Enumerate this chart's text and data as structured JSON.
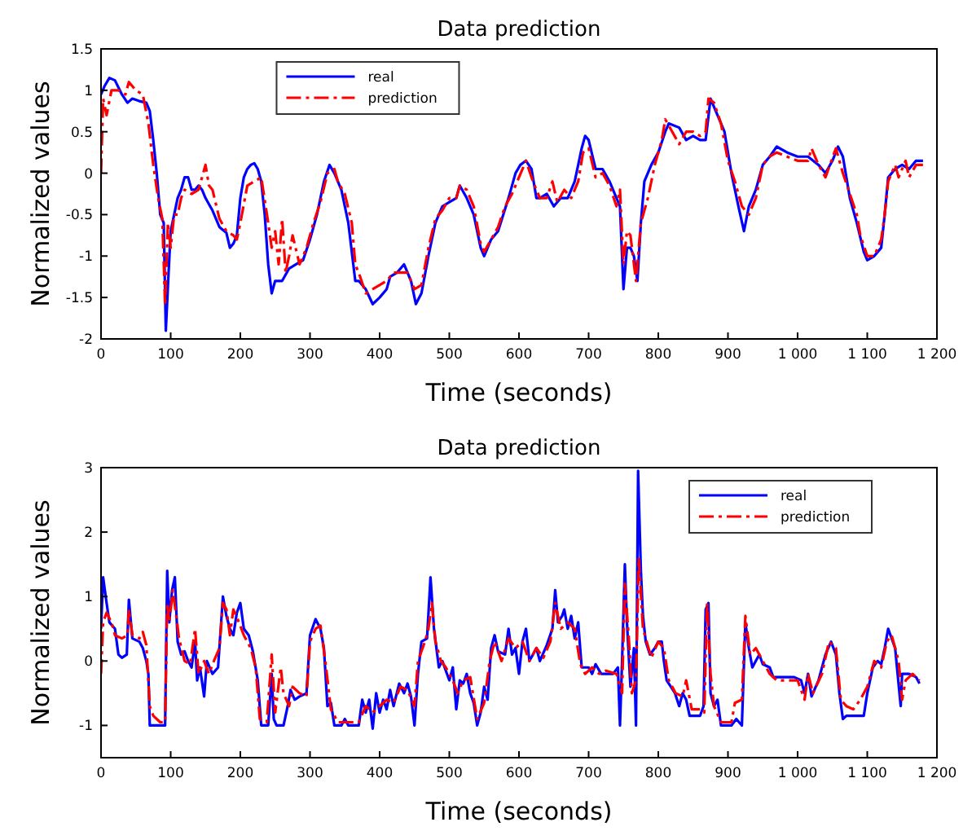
{
  "chart_data": [
    {
      "type": "line",
      "title": "Data prediction",
      "xlabel": "Time (seconds)",
      "ylabel": "Normalized values",
      "xlim": [
        0,
        1200
      ],
      "ylim": [
        -2,
        1.5
      ],
      "xticks": [
        0,
        100,
        200,
        300,
        400,
        500,
        600,
        700,
        800,
        900,
        {
          "value": 1000,
          "label": "1 000"
        },
        {
          "value": 1100,
          "label": "1 100"
        },
        {
          "value": 1200,
          "label": "1 200"
        }
      ],
      "yticks": [
        -2,
        -1.5,
        -1,
        -0.5,
        0,
        0.5,
        1,
        1.5
      ],
      "grid": false,
      "legend": "top",
      "series": [
        {
          "name": "real",
          "color": "#0000ff",
          "line_style": "solid",
          "x": [
            0,
            5,
            12,
            20,
            30,
            38,
            45,
            55,
            65,
            70,
            75,
            80,
            85,
            90,
            93,
            97,
            100,
            105,
            110,
            115,
            120,
            125,
            130,
            135,
            140,
            145,
            150,
            160,
            170,
            180,
            185,
            190,
            195,
            200,
            205,
            210,
            215,
            220,
            225,
            230,
            235,
            240,
            245,
            250,
            260,
            270,
            280,
            290,
            300,
            310,
            320,
            328,
            335,
            345,
            355,
            365,
            370,
            380,
            390,
            400,
            410,
            415,
            425,
            435,
            445,
            452,
            460,
            470,
            480,
            490,
            500,
            510,
            515,
            525,
            535,
            545,
            550,
            560,
            570,
            585,
            595,
            602,
            610,
            618,
            625,
            630,
            640,
            650,
            660,
            670,
            680,
            690,
            695,
            700,
            710,
            720,
            730,
            740,
            745,
            750,
            755,
            760,
            765,
            770,
            775,
            780,
            790,
            800,
            810,
            815,
            830,
            840,
            850,
            860,
            868,
            875,
            885,
            895,
            905,
            915,
            923,
            930,
            940,
            950,
            960,
            970,
            985,
            1000,
            1015,
            1030,
            1040,
            1050,
            1058,
            1065,
            1075,
            1085,
            1095,
            1100,
            1110,
            1120,
            1125,
            1130,
            1140,
            1150,
            1160,
            1170,
            1180
          ],
          "values": [
            0.95,
            1.05,
            1.15,
            1.12,
            0.95,
            0.85,
            0.9,
            0.87,
            0.85,
            0.75,
            0.4,
            0,
            -0.5,
            -0.6,
            -1.9,
            -1.2,
            -0.7,
            -0.5,
            -0.3,
            -0.2,
            -0.05,
            -0.05,
            -0.2,
            -0.2,
            -0.15,
            -0.2,
            -0.3,
            -0.45,
            -0.65,
            -0.72,
            -0.9,
            -0.85,
            -0.75,
            -0.3,
            -0.05,
            0.05,
            0.1,
            0.12,
            0.05,
            -0.1,
            -0.5,
            -1.1,
            -1.45,
            -1.3,
            -1.3,
            -1.15,
            -1.1,
            -1.05,
            -0.8,
            -0.5,
            -0.1,
            0.1,
            0,
            -0.2,
            -0.6,
            -1.3,
            -1.3,
            -1.4,
            -1.58,
            -1.5,
            -1.4,
            -1.25,
            -1.2,
            -1.1,
            -1.3,
            -1.58,
            -1.45,
            -1,
            -0.6,
            -0.4,
            -0.35,
            -0.3,
            -0.15,
            -0.3,
            -0.5,
            -0.9,
            -1,
            -0.8,
            -0.7,
            -0.3,
            0,
            0.1,
            0.15,
            0.05,
            -0.3,
            -0.3,
            -0.25,
            -0.4,
            -0.3,
            -0.3,
            -0.1,
            0.3,
            0.45,
            0.4,
            0.05,
            0.05,
            -0.1,
            -0.3,
            -0.4,
            -1.4,
            -0.9,
            -0.9,
            -1,
            -1.3,
            -0.6,
            -0.1,
            0.1,
            0.25,
            0.5,
            0.6,
            0.55,
            0.4,
            0.45,
            0.4,
            0.4,
            0.9,
            0.7,
            0.5,
            0,
            -0.4,
            -0.7,
            -0.4,
            -0.2,
            0.1,
            0.2,
            0.32,
            0.25,
            0.2,
            0.2,
            0.1,
            0,
            0.15,
            0.32,
            0.2,
            -0.3,
            -0.6,
            -0.95,
            -1.05,
            -1,
            -0.9,
            -0.5,
            -0.05,
            0.05,
            0.1,
            0.05,
            0.15,
            0.15
          ]
        },
        {
          "name": "prediction",
          "color": "#ff0000",
          "line_style": "dashed",
          "x": [
            0,
            3,
            8,
            15,
            25,
            35,
            40,
            50,
            60,
            68,
            75,
            82,
            88,
            92,
            96,
            100,
            105,
            110,
            115,
            120,
            130,
            140,
            150,
            155,
            160,
            170,
            180,
            190,
            195,
            200,
            210,
            220,
            230,
            240,
            245,
            250,
            255,
            260,
            265,
            270,
            275,
            285,
            295,
            305,
            315,
            325,
            335,
            340,
            350,
            360,
            365,
            372,
            380,
            390,
            400,
            410,
            420,
            430,
            440,
            450,
            460,
            470,
            480,
            490,
            500,
            510,
            515,
            525,
            535,
            545,
            550,
            560,
            570,
            580,
            590,
            600,
            610,
            620,
            630,
            640,
            648,
            655,
            665,
            675,
            685,
            692,
            700,
            710,
            720,
            730,
            740,
            745,
            750,
            755,
            760,
            768,
            775,
            785,
            795,
            805,
            810,
            820,
            830,
            840,
            850,
            860,
            868,
            872,
            880,
            890,
            900,
            910,
            920,
            930,
            940,
            950,
            960,
            970,
            985,
            1000,
            1015,
            1020,
            1030,
            1040,
            1055,
            1065,
            1075,
            1085,
            1090,
            1100,
            1110,
            1120,
            1125,
            1130,
            1140,
            1145,
            1155,
            1160,
            1170,
            1180
          ],
          "values": [
            0,
            0.9,
            0.7,
            1,
            1,
            0.95,
            1.1,
            1,
            0.95,
            0.6,
            0.1,
            -0.3,
            -0.55,
            -1.6,
            -0.6,
            -0.9,
            -0.5,
            -0.5,
            -0.3,
            -0.2,
            -0.25,
            -0.2,
            0.1,
            -0.15,
            -0.2,
            -0.55,
            -0.7,
            -0.75,
            -0.8,
            -0.6,
            -0.15,
            -0.1,
            -0.05,
            -0.6,
            -0.9,
            -0.7,
            -1.1,
            -0.55,
            -1.2,
            -1,
            -0.75,
            -1.1,
            -0.9,
            -0.6,
            -0.35,
            0,
            0.05,
            -0.1,
            -0.25,
            -0.6,
            -1.1,
            -1.25,
            -1.45,
            -1.4,
            -1.35,
            -1.3,
            -1.2,
            -1.2,
            -1.2,
            -1.4,
            -1.35,
            -0.9,
            -0.55,
            -0.45,
            -0.3,
            -0.3,
            -0.15,
            -0.2,
            -0.4,
            -0.85,
            -0.95,
            -0.8,
            -0.65,
            -0.4,
            -0.25,
            -0.05,
            0.15,
            -0.1,
            -0.3,
            -0.3,
            -0.1,
            -0.35,
            -0.2,
            -0.3,
            -0.1,
            0.25,
            0.3,
            -0.05,
            0,
            -0.15,
            -0.4,
            -0.2,
            -1.1,
            -0.7,
            -0.75,
            -1.3,
            -0.6,
            -0.3,
            0.1,
            0.4,
            0.65,
            0.5,
            0.35,
            0.5,
            0.5,
            0.45,
            0.5,
            0.9,
            0.85,
            0.6,
            0.15,
            -0.1,
            -0.4,
            -0.5,
            -0.3,
            0.1,
            0.2,
            0.25,
            0.2,
            0.15,
            0.15,
            0.3,
            0.1,
            -0.05,
            0.3,
            0,
            -0.25,
            -0.5,
            -0.75,
            -1,
            -1,
            -0.8,
            -0.5,
            -0.1,
            0.1,
            -0.05,
            0.15,
            -0.05,
            0.1,
            0.1
          ]
        }
      ]
    },
    {
      "type": "line",
      "title": "Data prediction",
      "xlabel": "Time (seconds)",
      "ylabel": "Normalized values",
      "xlim": [
        0,
        1200
      ],
      "ylim": [
        -1.5,
        3
      ],
      "xticks": [
        0,
        100,
        200,
        300,
        400,
        500,
        600,
        700,
        800,
        900,
        {
          "value": 1000,
          "label": "1 000"
        },
        {
          "value": 1100,
          "label": "1 100"
        },
        {
          "value": 1200,
          "label": "1 200"
        }
      ],
      "yticks": [
        -1,
        0,
        1,
        2,
        3
      ],
      "grid": false,
      "legend": "top right",
      "series": [
        {
          "name": "real",
          "color": "#0000ff",
          "line_style": "solid",
          "x": [
            0,
            3,
            8,
            12,
            20,
            25,
            30,
            37,
            40,
            45,
            55,
            60,
            65,
            68,
            70,
            80,
            92,
            95,
            98,
            102,
            106,
            110,
            115,
            120,
            125,
            130,
            135,
            138,
            142,
            148,
            152,
            160,
            168,
            175,
            180,
            185,
            190,
            195,
            200,
            205,
            212,
            218,
            225,
            230,
            240,
            245,
            248,
            252,
            262,
            268,
            272,
            278,
            285,
            295,
            300,
            308,
            315,
            320,
            325,
            330,
            335,
            345,
            350,
            355,
            370,
            375,
            380,
            385,
            390,
            395,
            400,
            405,
            410,
            415,
            420,
            428,
            435,
            440,
            445,
            450,
            455,
            460,
            468,
            473,
            478,
            485,
            490,
            495,
            500,
            505,
            510,
            515,
            520,
            525,
            530,
            535,
            540,
            545,
            550,
            555,
            560,
            565,
            570,
            580,
            585,
            590,
            595,
            600,
            605,
            610,
            615,
            620,
            625,
            630,
            640,
            648,
            652,
            656,
            662,
            665,
            670,
            675,
            680,
            685,
            690,
            700,
            705,
            710,
            718,
            725,
            735,
            742,
            745,
            748,
            752,
            755,
            760,
            765,
            768,
            771,
            775,
            778,
            782,
            788,
            795,
            800,
            805,
            808,
            812,
            818,
            824,
            830,
            835,
            840,
            845,
            860,
            865,
            868,
            872,
            875,
            880,
            885,
            890,
            905,
            912,
            920,
            925,
            930,
            935,
            940,
            945,
            950,
            960,
            965,
            975,
            985,
            995,
            1005,
            1010,
            1015,
            1020,
            1030,
            1040,
            1048,
            1055,
            1060,
            1065,
            1070,
            1080,
            1095,
            1100,
            1108,
            1115,
            1120,
            1125,
            1130,
            1135,
            1140,
            1148,
            1150,
            1160,
            1170,
            1175
          ],
          "values": [
            0.5,
            1.3,
            0.9,
            0.6,
            0.5,
            0.1,
            0.05,
            0.1,
            0.95,
            0.35,
            0.3,
            0.2,
            0,
            -0.2,
            -1,
            -1,
            -1,
            1.4,
            0.6,
            1.1,
            1.3,
            0.3,
            0.1,
            0.15,
            0,
            -0.1,
            0.3,
            -0.3,
            -0.1,
            -0.55,
            0,
            -0.2,
            -0.1,
            1,
            0.7,
            0.5,
            0.4,
            0.75,
            0.9,
            0.5,
            0.4,
            0.15,
            -0.3,
            -1,
            -1,
            -0.2,
            -0.9,
            -1,
            -1,
            -0.7,
            -0.45,
            -0.6,
            -0.55,
            -0.5,
            0.4,
            0.65,
            0.5,
            0.2,
            -0.7,
            -0.65,
            -1,
            -1,
            -0.9,
            -1,
            -1,
            -0.6,
            -0.8,
            -0.6,
            -1.05,
            -0.5,
            -0.8,
            -0.6,
            -0.75,
            -0.45,
            -0.7,
            -0.35,
            -0.5,
            -0.35,
            -0.55,
            -1,
            -0.2,
            0.3,
            0.35,
            1.3,
            0.5,
            -0.1,
            0,
            -0.15,
            -0.3,
            -0.1,
            -0.75,
            -0.3,
            -0.35,
            -0.2,
            -0.5,
            -0.65,
            -1,
            -0.8,
            -0.4,
            -0.6,
            0.2,
            0.4,
            0.15,
            0.1,
            0.5,
            0.1,
            0.2,
            -0.2,
            0.3,
            0.5,
            0,
            0.1,
            0.2,
            0,
            0.25,
            0.5,
            1.1,
            0.6,
            0.7,
            0.8,
            0.5,
            0.7,
            0.35,
            0.6,
            -0.1,
            -0.1,
            -0.2,
            -0.05,
            -0.2,
            -0.2,
            -0.2,
            -0.1,
            -1,
            0,
            1.5,
            0.6,
            -0.4,
            0.2,
            -1,
            2.95,
            1.4,
            0.7,
            0.3,
            0.1,
            0.2,
            0.3,
            0.3,
            0,
            -0.3,
            -0.4,
            -0.5,
            -0.7,
            -0.5,
            -0.6,
            -0.85,
            -0.85,
            -0.7,
            0.8,
            0.9,
            -0.5,
            -0.7,
            -0.6,
            -1,
            -1,
            -0.9,
            -1,
            0.6,
            0.2,
            -0.1,
            0,
            0.1,
            -0.05,
            -0.1,
            -0.25,
            -0.25,
            -0.25,
            -0.25,
            -0.3,
            -0.5,
            -0.2,
            -0.55,
            -0.3,
            0.1,
            0.3,
            0.1,
            -0.5,
            -0.9,
            -0.85,
            -0.85,
            -0.85,
            -0.5,
            -0.1,
            0,
            -0.05,
            0.2,
            0.5,
            0.35,
            0.2,
            -0.7,
            -0.2,
            -0.2,
            -0.25,
            -0.35
          ]
        },
        {
          "name": "prediction",
          "color": "#ff0000",
          "line_style": "dashed",
          "x": [
            0,
            3,
            8,
            15,
            20,
            30,
            38,
            40,
            45,
            55,
            60,
            65,
            70,
            75,
            85,
            92,
            95,
            98,
            103,
            108,
            112,
            120,
            128,
            135,
            140,
            148,
            155,
            162,
            170,
            175,
            180,
            185,
            190,
            198,
            205,
            215,
            222,
            228,
            238,
            245,
            250,
            258,
            262,
            270,
            275,
            285,
            295,
            300,
            308,
            315,
            322,
            330,
            340,
            355,
            370,
            380,
            390,
            400,
            410,
            420,
            430,
            440,
            450,
            455,
            465,
            470,
            475,
            480,
            488,
            495,
            505,
            512,
            520,
            530,
            540,
            550,
            558,
            565,
            575,
            585,
            595,
            605,
            615,
            625,
            635,
            645,
            652,
            660,
            670,
            680,
            688,
            695,
            705,
            715,
            725,
            740,
            748,
            752,
            758,
            762,
            768,
            772,
            778,
            790,
            800,
            808,
            815,
            825,
            835,
            840,
            848,
            860,
            866,
            870,
            875,
            880,
            890,
            905,
            910,
            920,
            925,
            932,
            940,
            950,
            960,
            970,
            985,
            1000,
            1010,
            1015,
            1022,
            1035,
            1045,
            1055,
            1062,
            1070,
            1080,
            1090,
            1100,
            1110,
            1120,
            1128,
            1135,
            1145,
            1150,
            1155,
            1165,
            1175
          ],
          "values": [
            -0.2,
            0.6,
            0.75,
            0.6,
            0.4,
            0.35,
            0.4,
            0.8,
            0.4,
            0.35,
            0.45,
            0.25,
            -0.7,
            -0.85,
            -0.95,
            -0.95,
            0.9,
            0.6,
            1.1,
            0.7,
            0.35,
            0,
            -0.05,
            0.5,
            -0.2,
            0,
            -0.2,
            0,
            0.2,
            0.9,
            0.8,
            0.4,
            0.8,
            0.6,
            0.4,
            0.2,
            -0.1,
            -0.9,
            -0.95,
            0.1,
            -0.8,
            -0.1,
            -0.5,
            -0.7,
            -0.4,
            -0.5,
            -0.55,
            0.3,
            0.5,
            0.55,
            0,
            -0.75,
            -0.95,
            -0.95,
            -0.95,
            -0.7,
            -0.8,
            -0.7,
            -0.6,
            -0.65,
            -0.4,
            -0.45,
            -0.7,
            0,
            0.3,
            0.5,
            0.9,
            0.3,
            0,
            -0.1,
            -0.3,
            -0.5,
            -0.3,
            -0.25,
            -0.9,
            -0.65,
            0,
            0.3,
            0,
            0.35,
            0.2,
            0.3,
            0,
            0.2,
            0.05,
            0.3,
            0.9,
            0.5,
            0.6,
            0.5,
            -0.05,
            -0.2,
            -0.1,
            -0.2,
            -0.15,
            -0.2,
            -0.5,
            1.2,
            0.3,
            -0.5,
            -0.3,
            1.6,
            0.5,
            0.05,
            0.3,
            0.2,
            -0.3,
            -0.5,
            -0.55,
            -0.3,
            -0.75,
            -0.75,
            -0.8,
            0.9,
            -0.2,
            -0.7,
            -0.95,
            -0.95,
            -0.65,
            -0.6,
            0.7,
            0.1,
            0.2,
            0,
            -0.2,
            -0.3,
            -0.3,
            -0.3,
            -0.6,
            -0.2,
            -0.5,
            -0.2,
            0.3,
            0.2,
            -0.6,
            -0.7,
            -0.75,
            -0.6,
            -0.4,
            0,
            -0.1,
            0.3,
            0.4,
            0,
            -0.6,
            -0.3,
            -0.2,
            -0.3
          ]
        }
      ]
    }
  ]
}
